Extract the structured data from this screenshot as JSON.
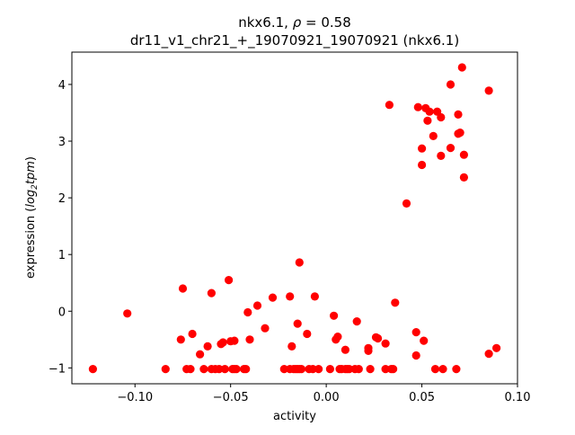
{
  "chart_data": {
    "type": "scatter",
    "title_line1_prefix": "nkx6.1, ",
    "title_line1_symbol": "ρ",
    "title_line1_suffix": " = 0.58",
    "title_line2": "dr11_v1_chr21_+_19070921_19070921 (nkx6.1)",
    "xlabel": "activity",
    "ylabel_prefix": "expression (",
    "ylabel_math": "log",
    "ylabel_sub": "2",
    "ylabel_math2": "tpm",
    "ylabel_suffix": ")",
    "xlim": [
      -0.133,
      0.1
    ],
    "ylim": [
      -1.28,
      4.57
    ],
    "xticks": [
      -0.1,
      -0.05,
      0.0,
      0.05,
      0.1
    ],
    "xtick_labels": [
      "−0.10",
      "−0.05",
      "0.00",
      "0.05",
      "0.10"
    ],
    "yticks": [
      -1,
      0,
      1,
      2,
      3,
      4
    ],
    "ytick_labels": [
      "−1",
      "0",
      "1",
      "2",
      "3",
      "4"
    ],
    "marker_color": "#ff0000",
    "grid": false,
    "x": [
      -0.122,
      -0.104,
      -0.084,
      -0.076,
      -0.075,
      -0.073,
      -0.071,
      -0.07,
      -0.066,
      -0.064,
      -0.062,
      -0.06,
      -0.06,
      -0.058,
      -0.056,
      -0.055,
      -0.054,
      -0.053,
      -0.051,
      -0.05,
      -0.049,
      -0.048,
      -0.048,
      -0.047,
      -0.043,
      -0.042,
      -0.041,
      -0.04,
      -0.036,
      -0.032,
      -0.028,
      -0.022,
      -0.019,
      -0.019,
      -0.018,
      -0.017,
      -0.016,
      -0.015,
      -0.015,
      -0.014,
      -0.014,
      -0.013,
      -0.01,
      -0.009,
      -0.007,
      -0.006,
      -0.004,
      0.002,
      0.004,
      0.005,
      0.006,
      0.007,
      0.008,
      0.01,
      0.01,
      0.011,
      0.012,
      0.015,
      0.016,
      0.017,
      0.022,
      0.022,
      0.023,
      0.026,
      0.027,
      0.031,
      0.031,
      0.033,
      0.034,
      0.035,
      0.036,
      0.042,
      0.047,
      0.047,
      0.048,
      0.05,
      0.05,
      0.051,
      0.052,
      0.053,
      0.054,
      0.056,
      0.057,
      0.058,
      0.06,
      0.06,
      0.061,
      0.065,
      0.065,
      0.068,
      0.069,
      0.069,
      0.07,
      0.071,
      0.072,
      0.072,
      0.085,
      0.085,
      0.089
    ],
    "y": [
      -1.02,
      -0.04,
      -1.02,
      -0.5,
      0.4,
      -1.02,
      -1.02,
      -0.4,
      -0.76,
      -1.02,
      -0.62,
      0.32,
      -1.02,
      -1.02,
      -1.02,
      -0.58,
      -0.55,
      -1.02,
      0.55,
      -0.53,
      -1.02,
      -1.02,
      -0.52,
      -1.02,
      -1.02,
      -1.02,
      -0.02,
      -0.5,
      0.1,
      -0.3,
      0.24,
      -1.02,
      0.26,
      -1.02,
      -0.62,
      -1.02,
      -1.02,
      -1.02,
      -0.22,
      0.86,
      -1.02,
      -1.02,
      -0.4,
      -1.02,
      -1.02,
      0.26,
      -1.02,
      -1.02,
      -0.08,
      -0.5,
      -0.45,
      -1.02,
      -1.02,
      -1.02,
      -0.68,
      -1.02,
      -1.02,
      -1.02,
      -0.18,
      -1.02,
      -0.7,
      -0.65,
      -1.02,
      -0.46,
      -0.48,
      -1.02,
      -0.57,
      3.64,
      -1.02,
      -1.02,
      0.15,
      1.9,
      -0.37,
      -0.78,
      3.6,
      2.87,
      2.58,
      -0.52,
      3.58,
      3.36,
      3.52,
      3.09,
      -1.02,
      3.52,
      2.74,
      3.42,
      -1.02,
      2.88,
      4.0,
      -1.02,
      3.13,
      3.47,
      3.15,
      4.3,
      2.76,
      2.36,
      3.89,
      -0.75,
      -0.65
    ]
  }
}
